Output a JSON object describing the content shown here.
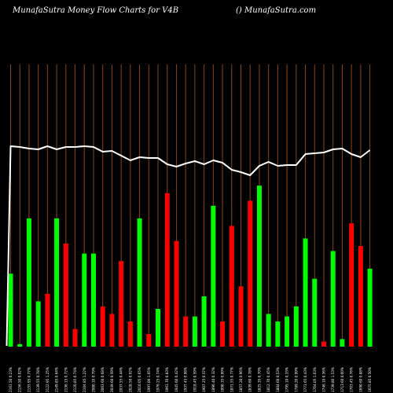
{
  "header": {
    "left": "MunafaSutra  Money Flow  Charts for V4B",
    "right": "() MunafaSutra.com"
  },
  "chart_data": {
    "type": "bar",
    "colors": {
      "up": "#00ff00",
      "down": "#ff0000",
      "price_line": "#ffffff",
      "grid": "#8b4513",
      "background": "#000000"
    },
    "ylim": [
      0,
      1
    ],
    "grid": "vertical",
    "bars": [
      {
        "dir": "up",
        "value": 0.29,
        "label": "2161.50 0.23%"
      },
      {
        "dir": "up",
        "value": 0.01,
        "label": "2156.50 0.02%"
      },
      {
        "dir": "up",
        "value": 0.51,
        "label": "2155.95 0.77%"
      },
      {
        "dir": "up",
        "value": 0.18,
        "label": "2139.55 0.78%"
      },
      {
        "dir": "down",
        "value": 0.21,
        "label": "2122.95 1.25%"
      },
      {
        "dir": "up",
        "value": 0.51,
        "label": "2149.85 0.64%"
      },
      {
        "dir": "down",
        "value": 0.41,
        "label": "2136.15 0.72%"
      },
      {
        "dir": "down",
        "value": 0.07,
        "label": "2120.85 0.74%"
      },
      {
        "dir": "up",
        "value": 0.37,
        "label": "2104.85 1.22%"
      },
      {
        "dir": "up",
        "value": 0.37,
        "label": "2080.10 0.79%"
      },
      {
        "dir": "down",
        "value": 0.16,
        "label": "2063.60 0.68%"
      },
      {
        "dir": "down",
        "value": 0.13,
        "label": "2049.60 0.59%"
      },
      {
        "dir": "down",
        "value": 0.34,
        "label": "2037.55 0.44%"
      },
      {
        "dir": "down",
        "value": 0.1,
        "label": "2028.50 0.92%"
      },
      {
        "dir": "up",
        "value": 0.51,
        "label": "2010.05 0.65%"
      },
      {
        "dir": "down",
        "value": 0.05,
        "label": "1997.00 1.05%"
      },
      {
        "dir": "up",
        "value": 0.15,
        "label": "1976.25 0.74%"
      },
      {
        "dir": "down",
        "value": 0.61,
        "label": "1961.70 0.83%"
      },
      {
        "dir": "down",
        "value": 0.42,
        "label": "1945.60 0.42%"
      },
      {
        "dir": "down",
        "value": 0.12,
        "label": "1937.45 0.98%"
      },
      {
        "dir": "up",
        "value": 0.12,
        "label": "1918.45 0.59%"
      },
      {
        "dir": "up",
        "value": 0.2,
        "label": "1907.25 0.57%"
      },
      {
        "dir": "up",
        "value": 0.56,
        "label": "1896.40 0.32%"
      },
      {
        "dir": "down",
        "value": 0.1,
        "label": "1890.35 0.99%"
      },
      {
        "dir": "down",
        "value": 0.48,
        "label": "1871.55 0.77%"
      },
      {
        "dir": "down",
        "value": 0.24,
        "label": "1857.20 0.96%"
      },
      {
        "dir": "down",
        "value": 0.58,
        "label": "1839.60 0.78%"
      },
      {
        "dir": "up",
        "value": 0.64,
        "label": "1825.35 0.70%"
      },
      {
        "dir": "up",
        "value": 0.13,
        "label": "1812.70 0.45%"
      },
      {
        "dir": "up",
        "value": 0.1,
        "label": "1804.60 0.53%"
      },
      {
        "dir": "up",
        "value": 0.12,
        "label": "1795.10 0.33%"
      },
      {
        "dir": "up",
        "value": 0.16,
        "label": "1789.20 0.99%"
      },
      {
        "dir": "up",
        "value": 0.43,
        "label": "1771.65 0.43%"
      },
      {
        "dir": "up",
        "value": 0.27,
        "label": "1764.05 1.03%"
      },
      {
        "dir": "down",
        "value": 0.02,
        "label": "1746.10 0.36%"
      },
      {
        "dir": "up",
        "value": 0.38,
        "label": "1739.80 1.53%"
      },
      {
        "dir": "up",
        "value": 0.03,
        "label": "1713.60 0.60%"
      },
      {
        "dir": "down",
        "value": 0.49,
        "label": "1703.45 0.76%"
      },
      {
        "dir": "down",
        "value": 0.4,
        "label": "1690.60 0.88%"
      },
      {
        "dir": "up",
        "value": 0.31,
        "label": "1675.85 0.50%"
      }
    ],
    "price_line": [
      0.16,
      0.17,
      0.19,
      0.2,
      0.16,
      0.2,
      0.17,
      0.17,
      0.16,
      0.17,
      0.23,
      0.22,
      0.28,
      0.34,
      0.3,
      0.31,
      0.31,
      0.39,
      0.42,
      0.38,
      0.35,
      0.39,
      0.34,
      0.37,
      0.46,
      0.49,
      0.53,
      0.41,
      0.36,
      0.41,
      0.4,
      0.4,
      0.26,
      0.25,
      0.24,
      0.2,
      0.19,
      0.26,
      0.3,
      0.21
    ]
  }
}
